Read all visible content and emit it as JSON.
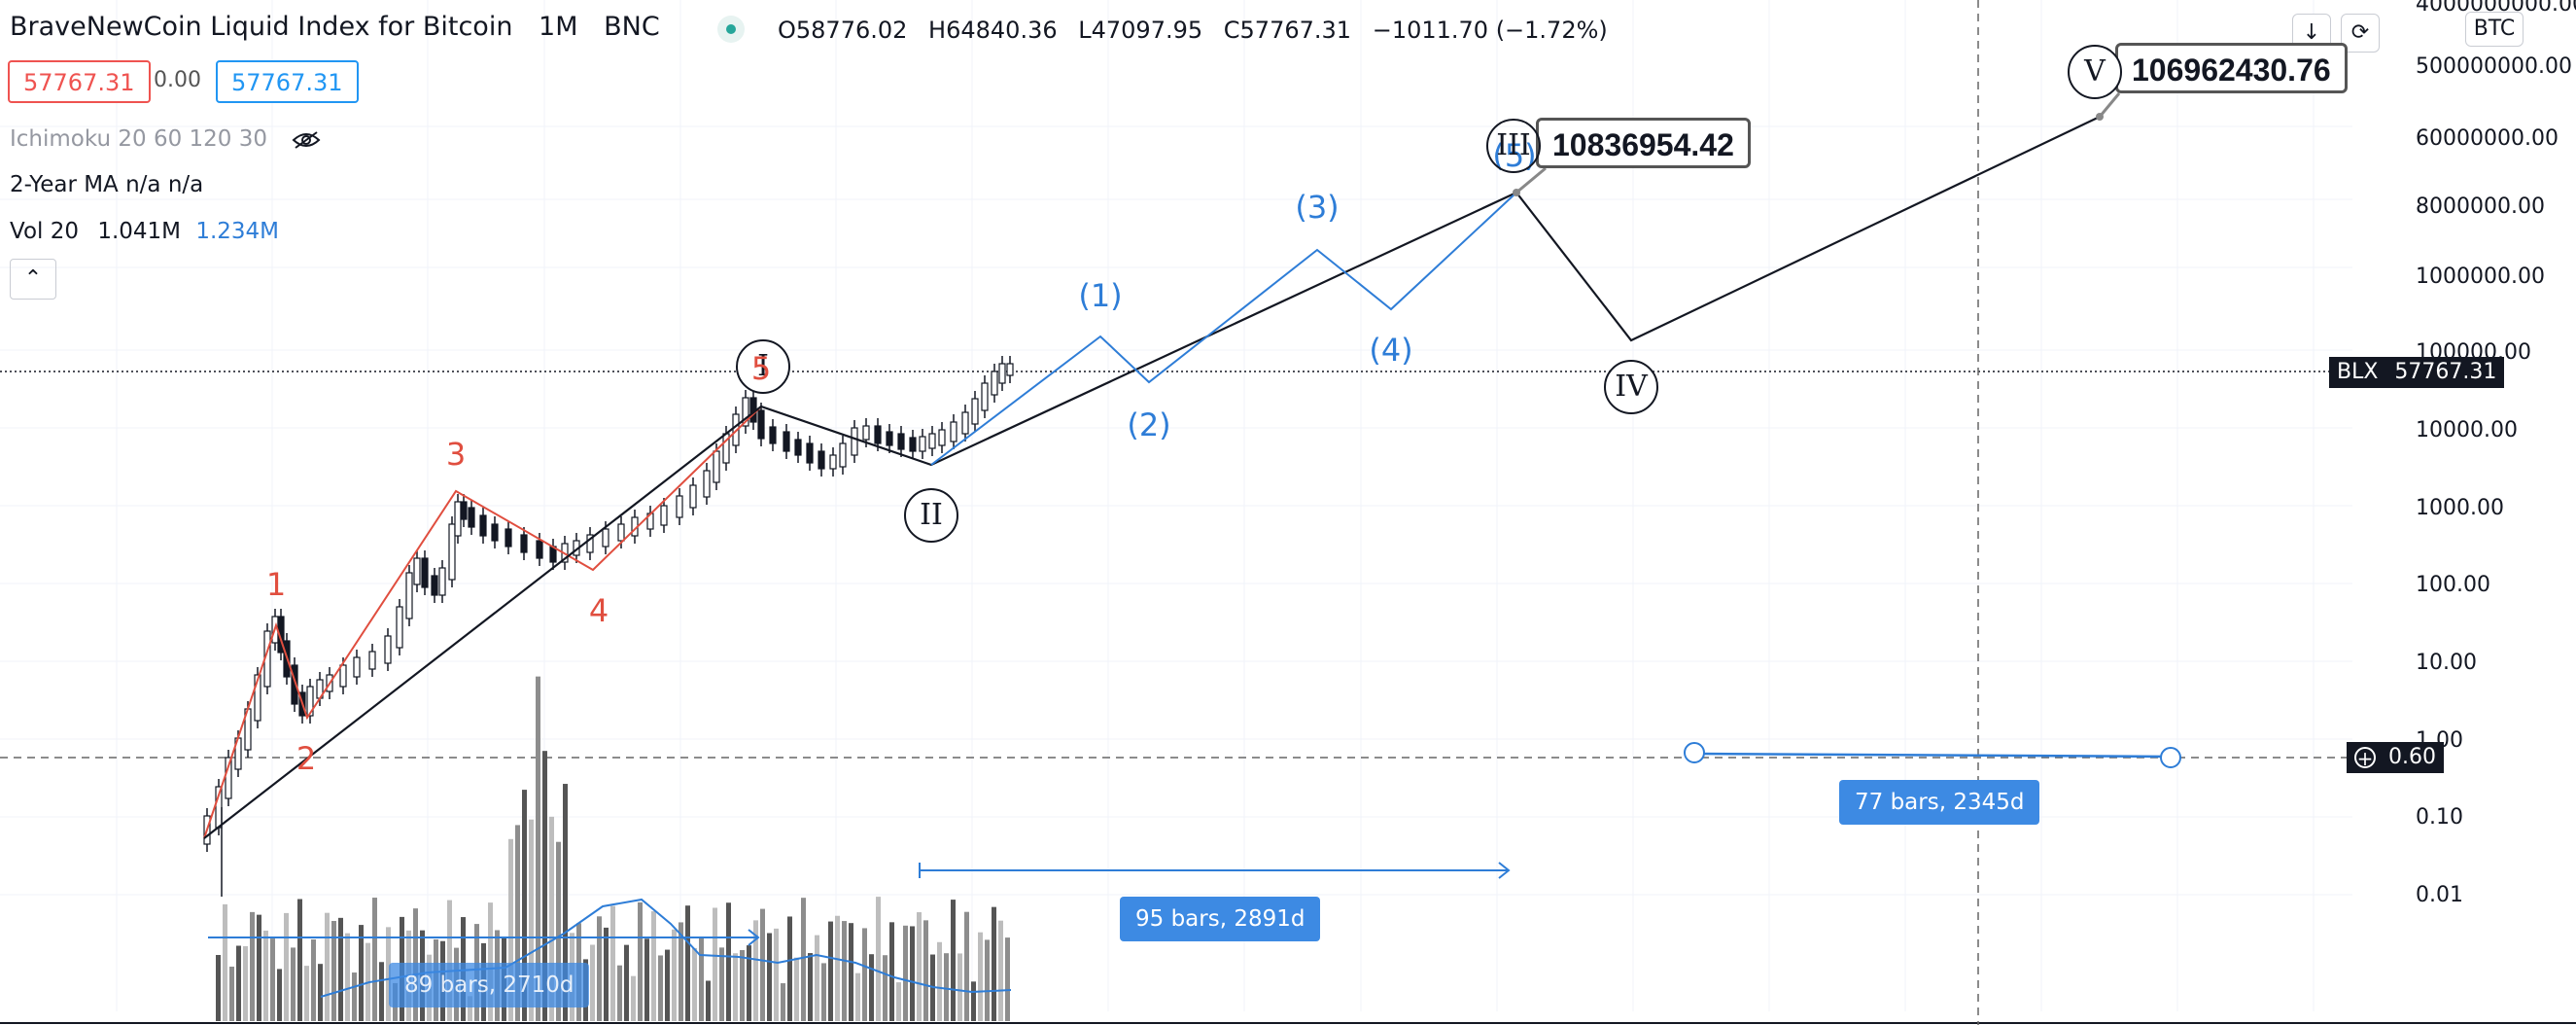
{
  "header": {
    "symbol": "BraveNewCoin Liquid Index for Bitcoin",
    "interval": "1M",
    "exchange": "BNC",
    "open": "O58776.02",
    "high": "H64840.36",
    "low": "L47097.95",
    "close": "C57767.31",
    "change": "−1011.70 (−1.72%)"
  },
  "price_boxes": {
    "sell": "57767.31",
    "spread": "0.00",
    "buy": "57767.31"
  },
  "indicators": {
    "ichimoku": "Ichimoku 20 60 120 30",
    "ma": "2-Year MA  n/a  n/a",
    "vol_label": "Vol 20",
    "vol_value": "1.041M",
    "vol_ma": "1.234M"
  },
  "toolbar": {
    "collapse_icon": "chevron-up-icon",
    "download_icon": "arrow-down-icon",
    "refresh_icon": "refresh-icon",
    "currency": "BTC"
  },
  "chart_data": {
    "type": "line",
    "scale": "log",
    "price_axis": [
      "4000000000.00",
      "500000000.00",
      "60000000.00",
      "8000000.00",
      "1000000.00",
      "100000.00",
      "10000.00",
      "1000.00",
      "100.00",
      "10.00",
      "1.00",
      "0.10",
      "0.01"
    ],
    "last_price_tag": {
      "symbol": "BLX",
      "value": "57767.31"
    },
    "cursor_tag": "0.60",
    "targets": {
      "wave_III": "10836954.42",
      "wave_V": "106962430.76"
    },
    "primary_wave_labels": [
      "I",
      "II",
      "III",
      "IV",
      "V"
    ],
    "red_wave_labels": [
      "1",
      "2",
      "3",
      "4",
      "5"
    ],
    "blue_wave_labels": [
      "(1)",
      "(2)",
      "(3)",
      "(4)",
      "(5)"
    ],
    "measures": [
      "89 bars, 2710d",
      "95 bars, 2891d",
      "77 bars, 2345d"
    ],
    "colors": {
      "up": "#131722",
      "red_wave": "#e04e3f",
      "blue_wave": "#2e7dd7",
      "volume": "#9e9e9e"
    }
  }
}
